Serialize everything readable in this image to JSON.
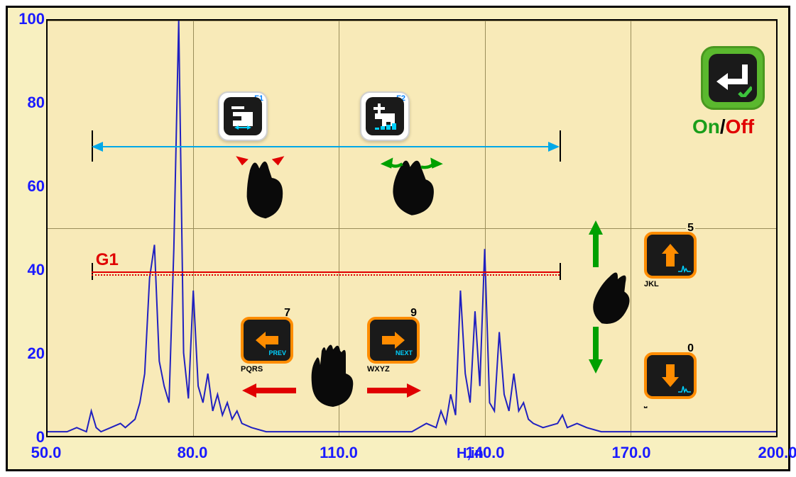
{
  "chart": {
    "type": "line",
    "xlim": [
      50,
      200
    ],
    "ylim": [
      0,
      100
    ],
    "xticks": [
      50.0,
      80.0,
      110.0,
      140.0,
      170.0,
      200.0
    ],
    "yticks": [
      0,
      20,
      40,
      60,
      80,
      100
    ],
    "xlabel": "H,in",
    "background_color": "#f8eab8",
    "grid_color": "#9a8d5a",
    "axis_color": "#000000",
    "tick_font_color": "#1a1aff",
    "tick_fontsize": 22,
    "line_color": "#2020c0",
    "line_width": 2,
    "data_points": [
      [
        50,
        1
      ],
      [
        54,
        1
      ],
      [
        56,
        2
      ],
      [
        58,
        1
      ],
      [
        59,
        6
      ],
      [
        60,
        2
      ],
      [
        61,
        1
      ],
      [
        63,
        2
      ],
      [
        65,
        3
      ],
      [
        66,
        2
      ],
      [
        68,
        4
      ],
      [
        69,
        8
      ],
      [
        70,
        15
      ],
      [
        71,
        38
      ],
      [
        72,
        46
      ],
      [
        73,
        18
      ],
      [
        74,
        12
      ],
      [
        75,
        8
      ],
      [
        76,
        45
      ],
      [
        77,
        100
      ],
      [
        78,
        20
      ],
      [
        79,
        9
      ],
      [
        80,
        35
      ],
      [
        81,
        12
      ],
      [
        82,
        8
      ],
      [
        83,
        15
      ],
      [
        84,
        6
      ],
      [
        85,
        10
      ],
      [
        86,
        5
      ],
      [
        87,
        8
      ],
      [
        88,
        4
      ],
      [
        89,
        6
      ],
      [
        90,
        3
      ],
      [
        92,
        2
      ],
      [
        95,
        1
      ],
      [
        100,
        1
      ],
      [
        105,
        1
      ],
      [
        110,
        1
      ],
      [
        115,
        1
      ],
      [
        120,
        1
      ],
      [
        125,
        1
      ],
      [
        128,
        3
      ],
      [
        130,
        2
      ],
      [
        131,
        6
      ],
      [
        132,
        3
      ],
      [
        133,
        10
      ],
      [
        134,
        5
      ],
      [
        135,
        35
      ],
      [
        136,
        15
      ],
      [
        137,
        8
      ],
      [
        138,
        30
      ],
      [
        139,
        12
      ],
      [
        140,
        45
      ],
      [
        141,
        8
      ],
      [
        142,
        6
      ],
      [
        143,
        25
      ],
      [
        144,
        10
      ],
      [
        145,
        6
      ],
      [
        146,
        15
      ],
      [
        147,
        6
      ],
      [
        148,
        8
      ],
      [
        149,
        4
      ],
      [
        150,
        3
      ],
      [
        152,
        2
      ],
      [
        155,
        3
      ],
      [
        156,
        5
      ],
      [
        157,
        2
      ],
      [
        159,
        3
      ],
      [
        161,
        2
      ],
      [
        164,
        1
      ],
      [
        168,
        1
      ],
      [
        175,
        1
      ],
      [
        185,
        1
      ],
      [
        195,
        1
      ],
      [
        200,
        1
      ]
    ]
  },
  "gate": {
    "label": "G1",
    "level_pct": 40,
    "x_start": 59,
    "x_end": 155,
    "color": "#e00000"
  },
  "range_indicator": {
    "x_start": 59,
    "x_end": 155,
    "y_pct": 70,
    "line_color": "#00a8e8",
    "cap_color": "#000000"
  },
  "f1_button": {
    "label": "F1",
    "icon": "zoom-out-step",
    "minus": "−"
  },
  "f2_button": {
    "label": "F2",
    "icon": "zoom-in-step",
    "plus": "+"
  },
  "enter_button": {
    "icon": "enter-arrow",
    "check": true
  },
  "onoff": {
    "on": "On",
    "sep": "/",
    "off": "Off",
    "on_color": "#1a9e1a",
    "off_color": "#e00000"
  },
  "orange_buttons": {
    "prev": {
      "num": "7",
      "sub": "PQRS",
      "badge": "PREV",
      "arrow": "left"
    },
    "next": {
      "num": "9",
      "sub": "WXYZ",
      "badge": "NEXT",
      "arrow": "right"
    },
    "up": {
      "num": "5",
      "sub": "JKL",
      "arrow": "up",
      "wave": true
    },
    "down": {
      "num": "0",
      "sub": "⎵",
      "arrow": "down",
      "wave": true
    }
  },
  "gestures": {
    "pinch_in_color": "#e00000",
    "pinch_out_color": "#00a000",
    "pan_arrows_color": "#e00000",
    "vert_arrows_color": "#00a000",
    "hand_color": "#0a0a0a"
  }
}
